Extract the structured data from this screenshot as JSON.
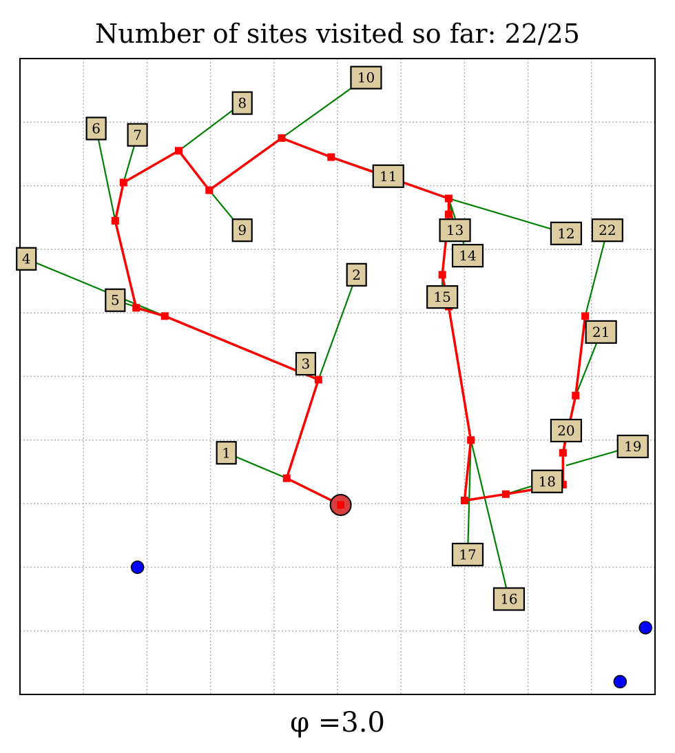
{
  "title": "Number of sites visited so far: 22/25",
  "xlabel": "φ =3.0",
  "colors": {
    "route": "#ff0000",
    "connector": "#008000",
    "label_fill": "#dccca0",
    "grid": "#b0b0b0",
    "depot": "#d84040",
    "unvisited": "#0000ff"
  },
  "chart_data": {
    "type": "scatter",
    "xlim": [
      0,
      10
    ],
    "ylim": [
      0,
      10
    ],
    "grid": true,
    "depot": {
      "x": 5.05,
      "y": 2.98
    },
    "sites": [
      {
        "label": "1",
        "x": 3.25,
        "y": 3.8,
        "route_x": 4.2,
        "route_y": 3.4
      },
      {
        "label": "2",
        "x": 5.3,
        "y": 6.6,
        "route_x": 4.7,
        "route_y": 4.95
      },
      {
        "label": "3",
        "x": 4.5,
        "y": 5.2,
        "route_x": 4.7,
        "route_y": 4.95
      },
      {
        "label": "4",
        "x": 0.1,
        "y": 6.85,
        "route_x": 2.28,
        "route_y": 5.95
      },
      {
        "label": "5",
        "x": 1.5,
        "y": 6.2,
        "route_x": 2.28,
        "route_y": 5.95
      },
      {
        "label": "6",
        "x": 1.2,
        "y": 8.9,
        "route_x": 1.5,
        "route_y": 7.45
      },
      {
        "label": "7",
        "x": 1.85,
        "y": 8.8,
        "route_x": 1.63,
        "route_y": 8.05
      },
      {
        "label": "8",
        "x": 3.5,
        "y": 9.3,
        "route_x": 2.5,
        "route_y": 8.55
      },
      {
        "label": "9",
        "x": 3.5,
        "y": 7.3,
        "route_x": 2.98,
        "route_y": 7.93
      },
      {
        "label": "10",
        "x": 5.45,
        "y": 9.7,
        "route_x": 4.12,
        "route_y": 8.75
      },
      {
        "label": "11",
        "x": 5.8,
        "y": 8.15,
        "route_x": 4.9,
        "route_y": 8.45
      },
      {
        "label": "12",
        "x": 8.6,
        "y": 7.25,
        "route_x": 6.75,
        "route_y": 7.8
      },
      {
        "label": "13",
        "x": 6.85,
        "y": 7.3,
        "route_x": 6.75,
        "route_y": 7.8
      },
      {
        "label": "14",
        "x": 7.05,
        "y": 6.9,
        "route_x": 6.75,
        "route_y": 7.8
      },
      {
        "label": "15",
        "x": 6.65,
        "y": 6.25,
        "route_x": 6.65,
        "route_y": 6.6
      },
      {
        "label": "16",
        "x": 7.7,
        "y": 1.5,
        "route_x": 7.1,
        "route_y": 4.0
      },
      {
        "label": "17",
        "x": 7.05,
        "y": 2.2,
        "route_x": 7.1,
        "route_y": 4.0
      },
      {
        "label": "18",
        "x": 8.3,
        "y": 3.35,
        "route_x": 7.65,
        "route_y": 3.15
      },
      {
        "label": "19",
        "x": 9.65,
        "y": 3.9,
        "route_x": 8.6,
        "route_y": 3.6
      },
      {
        "label": "20",
        "x": 8.6,
        "y": 4.15,
        "route_x": 8.55,
        "route_y": 3.8
      },
      {
        "label": "21",
        "x": 9.15,
        "y": 5.7,
        "route_x": 8.75,
        "route_y": 4.7
      },
      {
        "label": "22",
        "x": 9.25,
        "y": 7.3,
        "route_x": 8.9,
        "route_y": 5.95
      }
    ],
    "route": [
      {
        "x": 5.05,
        "y": 2.98
      },
      {
        "x": 4.2,
        "y": 3.4
      },
      {
        "x": 4.7,
        "y": 4.95
      },
      {
        "x": 2.28,
        "y": 5.95
      },
      {
        "x": 1.83,
        "y": 6.08
      },
      {
        "x": 1.5,
        "y": 7.45
      },
      {
        "x": 1.63,
        "y": 8.05
      },
      {
        "x": 2.5,
        "y": 8.55
      },
      {
        "x": 2.98,
        "y": 7.93
      },
      {
        "x": 4.12,
        "y": 8.75
      },
      {
        "x": 4.9,
        "y": 8.45
      },
      {
        "x": 6.75,
        "y": 7.8
      },
      {
        "x": 6.75,
        "y": 7.55
      },
      {
        "x": 6.65,
        "y": 6.6
      },
      {
        "x": 6.75,
        "y": 6.1
      },
      {
        "x": 7.1,
        "y": 4.0
      },
      {
        "x": 7.0,
        "y": 3.05
      },
      {
        "x": 7.65,
        "y": 3.15
      },
      {
        "x": 8.55,
        "y": 3.3
      },
      {
        "x": 8.55,
        "y": 3.8
      },
      {
        "x": 8.75,
        "y": 4.7
      },
      {
        "x": 8.9,
        "y": 5.95
      }
    ],
    "unvisited": [
      {
        "x": 1.85,
        "y": 2.0
      },
      {
        "x": 9.85,
        "y": 1.05
      },
      {
        "x": 9.45,
        "y": 0.2
      }
    ]
  }
}
